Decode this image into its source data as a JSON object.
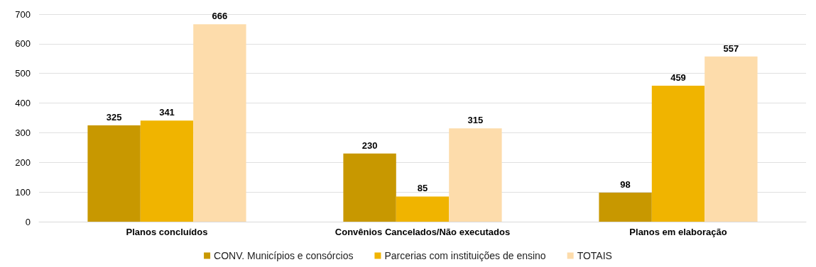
{
  "chart_data": {
    "type": "bar",
    "categories": [
      "Planos concluídos",
      "Convênios Cancelados/Não executados",
      "Planos em elaboração"
    ],
    "series": [
      {
        "name": "CONV. Municípios e consórcios",
        "color": "#c89800",
        "values": [
          325,
          230,
          98
        ]
      },
      {
        "name": "Parcerias com instituições de ensino",
        "color": "#f0b400",
        "values": [
          341,
          85,
          459
        ]
      },
      {
        "name": "TOTAIS",
        "color": "#fddcab",
        "values": [
          666,
          315,
          557
        ]
      }
    ],
    "ylim": [
      0,
      700
    ],
    "yticks": [
      0,
      100,
      200,
      300,
      400,
      500,
      600,
      700
    ],
    "grid": "y",
    "legend": "bottom",
    "data_labels": true
  }
}
